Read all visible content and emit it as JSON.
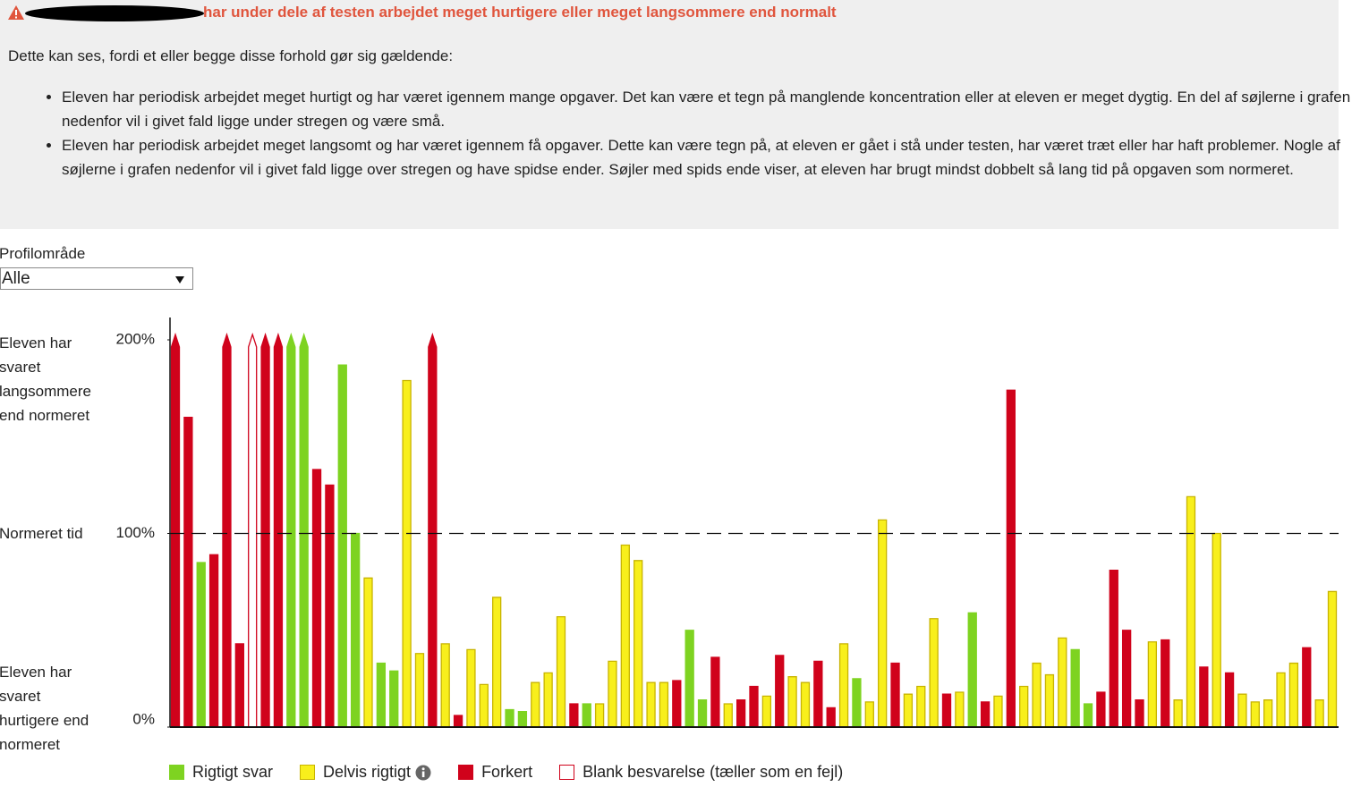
{
  "warning": {
    "text": "har under dele af testen arbejdet meget hurtigere eller meget langsommere end normalt"
  },
  "intro": "Dette kan ses, fordi et eller begge disse forhold gør sig gældende:",
  "bullets": [
    "Eleven har periodisk arbejdet meget hurtigt og har været igennem mange opgaver. Det kan være et tegn på manglende koncentration eller at eleven er meget dygtig. En del af søjlerne i grafen nedenfor vil i givet fald ligge under stregen og være små.",
    "Eleven har periodisk arbejdet meget langsomt og har været igennem få opgaver. Dette kan være tegn på, at eleven er gået i stå under testen, har været træt eller har haft problemer. Nogle af søjlerne i grafen nedenfor vil i givet fald ligge over stregen og have spidse ender. Søjler med spids ende viser, at eleven har brugt mindst dobbelt så lang tid på opgaven som normeret."
  ],
  "filter": {
    "label": "Profilområde",
    "selected": "Alle"
  },
  "chart_data": {
    "type": "bar",
    "side_labels": {
      "top": "Eleven har svaret langsommere end normeret",
      "middle": "Normeret tid",
      "bottom": "Eleven har svaret hurtigere end normeret"
    },
    "ylim": [
      0,
      200
    ],
    "yticks": [
      {
        "value": 0,
        "label": "0%"
      },
      {
        "value": 100,
        "label": "100%"
      },
      {
        "value": 200,
        "label": "200%"
      }
    ],
    "reference_line": 100,
    "values": [
      200,
      160,
      85,
      89,
      200,
      43,
      200,
      200,
      200,
      200,
      200,
      133,
      125,
      187,
      100,
      77,
      33,
      29,
      179,
      38,
      200,
      43,
      6,
      40,
      22,
      67,
      9,
      8,
      23,
      28,
      57,
      12,
      12,
      12,
      34,
      94,
      86,
      23,
      23,
      24,
      50,
      14,
      36,
      12,
      14,
      21,
      16,
      37,
      26,
      23,
      34,
      10,
      43,
      25,
      13,
      107,
      33,
      17,
      21,
      56,
      17,
      18,
      59,
      13,
      16,
      174,
      21,
      33,
      27,
      46,
      40,
      12,
      18,
      81,
      50,
      14,
      44,
      45,
      14,
      119,
      31,
      100,
      28,
      17,
      13,
      14,
      28,
      33,
      41,
      14,
      70
    ],
    "bar_series": [
      2,
      2,
      0,
      2,
      2,
      2,
      3,
      2,
      2,
      0,
      0,
      2,
      2,
      0,
      0,
      1,
      0,
      0,
      1,
      1,
      2,
      1,
      2,
      1,
      1,
      1,
      0,
      0,
      1,
      1,
      1,
      2,
      0,
      1,
      1,
      1,
      1,
      1,
      1,
      2,
      0,
      0,
      2,
      1,
      2,
      2,
      1,
      2,
      1,
      1,
      2,
      2,
      1,
      0,
      1,
      1,
      2,
      1,
      1,
      1,
      2,
      1,
      0,
      2,
      1,
      2,
      1,
      1,
      1,
      1,
      0,
      0,
      2,
      2,
      2,
      2,
      1,
      2,
      1,
      1,
      2,
      1,
      2,
      1,
      1,
      1,
      1,
      1,
      2,
      1,
      1
    ],
    "series": [
      {
        "name": "Rigtigt svar",
        "color": "#7ed321",
        "stroke": "#7ed321"
      },
      {
        "name": "Delvis rigtigt",
        "color": "#f8ef1c",
        "stroke": "#c8b400"
      },
      {
        "name": "Forkert",
        "color": "#d0021b",
        "stroke": "#d0021b"
      },
      {
        "name": "Blank besvarelse (tæller som en fejl)",
        "color": "#ffffff",
        "stroke": "#d0021b"
      }
    ]
  }
}
